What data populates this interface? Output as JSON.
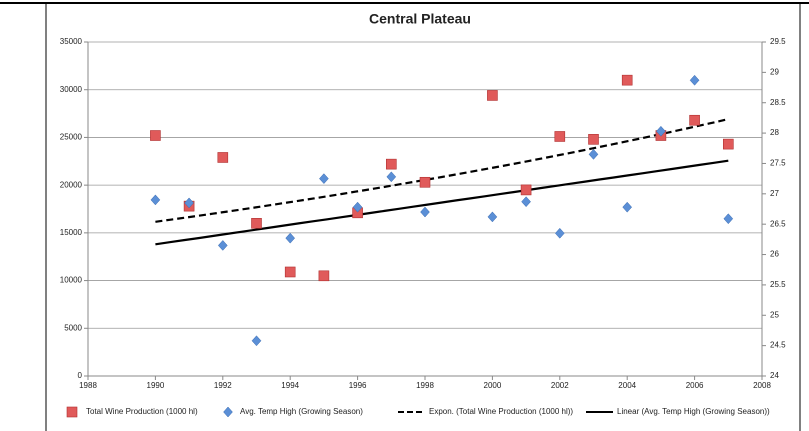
{
  "chart_data": {
    "type": "scatter",
    "title": "Central Plateau",
    "x": [
      1990,
      1991,
      1992,
      1993,
      1994,
      1995,
      1996,
      1997,
      1998,
      2000,
      2001,
      2002,
      2003,
      2004,
      2005,
      2006,
      2007
    ],
    "series": [
      {
        "name": "Total Wine Production (1000 hl)",
        "color": "#e05a5a",
        "marker": "square",
        "values": [
          25200,
          17800,
          22900,
          16000,
          10900,
          10500,
          17100,
          22200,
          20300,
          29400,
          19500,
          25100,
          24800,
          31000,
          25200,
          26800,
          24300
        ]
      },
      {
        "name": "Avg. Temp High (Growing Season)",
        "color": "#5b8fd6",
        "marker": "diamond",
        "axis": "y2",
        "values": [
          26.9,
          26.85,
          26.15,
          24.58,
          26.27,
          27.25,
          26.78,
          27.28,
          26.7,
          26.62,
          26.87,
          26.35,
          27.65,
          26.78,
          28.03,
          28.87,
          26.59
        ]
      }
    ],
    "trendlines": [
      {
        "name": "Expon. (Total Wine Production (1000 hl))",
        "series": 0,
        "fit": "exponential",
        "dash": true,
        "color": "#000000"
      },
      {
        "name": "Linear (Avg. Temp High (Growing Season))",
        "series": 1,
        "fit": "linear",
        "dash": false,
        "color": "#000000"
      }
    ],
    "xlim": [
      1988,
      2008
    ],
    "xticks": [
      1988,
      1990,
      1992,
      1994,
      1996,
      1998,
      2000,
      2002,
      2004,
      2006,
      2008
    ],
    "ylim": [
      0,
      35000
    ],
    "yticks": [
      0,
      5000,
      10000,
      15000,
      20000,
      25000,
      30000,
      35000
    ],
    "y2lim": [
      24,
      29.5
    ],
    "y2ticks": [
      24,
      24.5,
      25,
      25.5,
      26,
      26.5,
      27,
      27.5,
      28,
      28.5,
      29,
      29.5
    ],
    "grid": true
  }
}
